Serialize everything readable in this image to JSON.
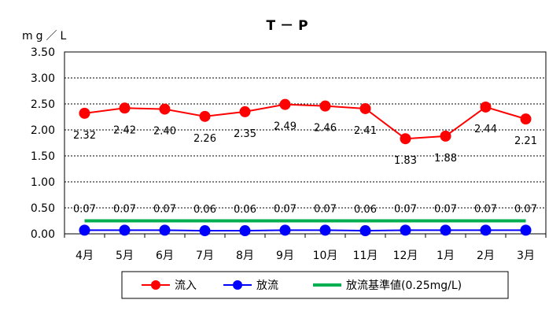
{
  "chart_data": {
    "type": "line",
    "title": "T－P",
    "ylabel": "mg／L",
    "xlabel": "",
    "categories": [
      "4月",
      "5月",
      "6月",
      "7月",
      "8月",
      "9月",
      "10月",
      "11月",
      "12月",
      "1月",
      "2月",
      "3月"
    ],
    "ylim": [
      0,
      3.5
    ],
    "yticks": [
      "0.00",
      "0.50",
      "1.00",
      "1.50",
      "2.00",
      "2.50",
      "3.00",
      "3.50"
    ],
    "grid": true,
    "legend": "bottom",
    "series": [
      {
        "name": "流入",
        "color": "#ff0000",
        "marker": "circle",
        "values": [
          2.32,
          2.42,
          2.4,
          2.26,
          2.35,
          2.49,
          2.46,
          2.41,
          1.83,
          1.88,
          2.44,
          2.21
        ],
        "labels": [
          "2.32",
          "2.42",
          "2.40",
          "2.26",
          "2.35",
          "2.49",
          "2.46",
          "2.41",
          "1.83",
          "1.88",
          "2.44",
          "2.21"
        ]
      },
      {
        "name": "放流",
        "color": "#0000ff",
        "marker": "circle",
        "values": [
          0.07,
          0.07,
          0.07,
          0.06,
          0.06,
          0.07,
          0.07,
          0.06,
          0.07,
          0.07,
          0.07,
          0.07
        ],
        "labels": [
          "0.07",
          "0.07",
          "0.07",
          "0.06",
          "0.06",
          "0.07",
          "0.07",
          "0.06",
          "0.07",
          "0.07",
          "0.07",
          "0.07"
        ]
      },
      {
        "name": "放流基準値(0.25mg/L)",
        "color": "#00b050",
        "marker": "none",
        "values": [
          0.25,
          0.25,
          0.25,
          0.25,
          0.25,
          0.25,
          0.25,
          0.25,
          0.25,
          0.25,
          0.25,
          0.25
        ]
      }
    ]
  }
}
